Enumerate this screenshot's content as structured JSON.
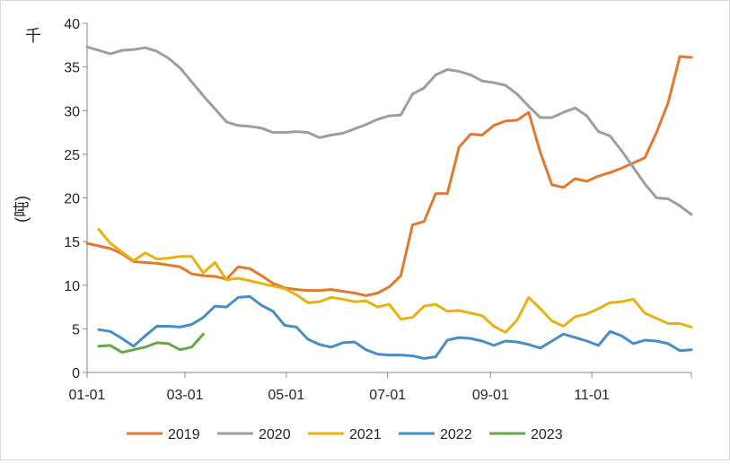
{
  "chart_data": {
    "type": "line",
    "title": "",
    "xlabel": "",
    "unit_label": "千",
    "ylabel": "(吨)",
    "xlim": [
      "01-01",
      "12-31"
    ],
    "ylim": [
      0,
      40
    ],
    "y_ticks": [
      0,
      5,
      10,
      15,
      20,
      25,
      30,
      35,
      40
    ],
    "x_ticks": [
      "01-01",
      "03-01",
      "05-01",
      "07-01",
      "09-01",
      "11-01"
    ],
    "grid": false,
    "legend_position": "bottom",
    "colors": {
      "2019": "#e07a30",
      "2020": "#9e9e9e",
      "2021": "#e6b214",
      "2022": "#4a8cc4",
      "2023": "#66a845"
    },
    "series": [
      {
        "name": "2019",
        "color": "#e07a30",
        "points": [
          [
            "01-01",
            14.8
          ],
          [
            "01-15",
            14.2
          ],
          [
            "01-22",
            13.6
          ],
          [
            "01-29",
            12.7
          ],
          [
            "02-05",
            12.6
          ],
          [
            "02-12",
            12.5
          ],
          [
            "02-19",
            12.3
          ],
          [
            "02-26",
            12.1
          ],
          [
            "03-05",
            11.3
          ],
          [
            "03-12",
            11.1
          ],
          [
            "03-19",
            11.0
          ],
          [
            "03-26",
            10.7
          ],
          [
            "04-02",
            12.1
          ],
          [
            "04-09",
            11.9
          ],
          [
            "04-16",
            11.1
          ],
          [
            "04-23",
            10.2
          ],
          [
            "04-30",
            9.7
          ],
          [
            "05-07",
            9.5
          ],
          [
            "05-14",
            9.4
          ],
          [
            "05-21",
            9.4
          ],
          [
            "05-28",
            9.5
          ],
          [
            "06-04",
            9.3
          ],
          [
            "06-11",
            9.1
          ],
          [
            "06-18",
            8.8
          ],
          [
            "06-25",
            9.1
          ],
          [
            "07-02",
            9.8
          ],
          [
            "07-09",
            11.1
          ],
          [
            "07-16",
            16.9
          ],
          [
            "07-23",
            17.3
          ],
          [
            "07-30",
            20.5
          ],
          [
            "08-06",
            20.5
          ],
          [
            "08-13",
            25.8
          ],
          [
            "08-20",
            27.3
          ],
          [
            "08-27",
            27.2
          ],
          [
            "09-03",
            28.3
          ],
          [
            "09-10",
            28.8
          ],
          [
            "09-17",
            28.9
          ],
          [
            "09-24",
            29.8
          ],
          [
            "10-01",
            25.2
          ],
          [
            "10-08",
            21.5
          ],
          [
            "10-15",
            21.2
          ],
          [
            "10-22",
            22.2
          ],
          [
            "10-29",
            21.9
          ],
          [
            "11-05",
            22.5
          ],
          [
            "11-12",
            22.9
          ],
          [
            "11-19",
            23.4
          ],
          [
            "11-26",
            24.0
          ],
          [
            "12-03",
            24.6
          ],
          [
            "12-10",
            27.5
          ],
          [
            "12-17",
            30.9
          ],
          [
            "12-24",
            36.2
          ],
          [
            "12-31",
            36.1
          ]
        ]
      },
      {
        "name": "2020",
        "color": "#9e9e9e",
        "points": [
          [
            "01-01",
            37.3
          ],
          [
            "01-08",
            36.9
          ],
          [
            "01-15",
            36.5
          ],
          [
            "01-22",
            36.9
          ],
          [
            "01-29",
            37.0
          ],
          [
            "02-05",
            37.2
          ],
          [
            "02-12",
            36.8
          ],
          [
            "02-19",
            36.0
          ],
          [
            "02-26",
            34.9
          ],
          [
            "03-05",
            33.3
          ],
          [
            "03-12",
            31.7
          ],
          [
            "03-19",
            30.2
          ],
          [
            "03-26",
            28.7
          ],
          [
            "04-02",
            28.3
          ],
          [
            "04-09",
            28.2
          ],
          [
            "04-16",
            28.0
          ],
          [
            "04-23",
            27.5
          ],
          [
            "04-30",
            27.5
          ],
          [
            "05-07",
            27.6
          ],
          [
            "05-14",
            27.5
          ],
          [
            "05-21",
            26.9
          ],
          [
            "05-28",
            27.2
          ],
          [
            "06-04",
            27.4
          ],
          [
            "06-11",
            27.9
          ],
          [
            "06-18",
            28.4
          ],
          [
            "06-25",
            29.0
          ],
          [
            "07-02",
            29.4
          ],
          [
            "07-09",
            29.5
          ],
          [
            "07-16",
            31.9
          ],
          [
            "07-23",
            32.6
          ],
          [
            "07-30",
            34.1
          ],
          [
            "08-06",
            34.7
          ],
          [
            "08-13",
            34.5
          ],
          [
            "08-20",
            34.1
          ],
          [
            "08-27",
            33.4
          ],
          [
            "09-03",
            33.2
          ],
          [
            "09-10",
            32.9
          ],
          [
            "09-17",
            31.9
          ],
          [
            "09-24",
            30.5
          ],
          [
            "10-01",
            29.2
          ],
          [
            "10-08",
            29.2
          ],
          [
            "10-15",
            29.8
          ],
          [
            "10-22",
            30.3
          ],
          [
            "10-29",
            29.4
          ],
          [
            "11-05",
            27.6
          ],
          [
            "11-12",
            27.1
          ],
          [
            "11-19",
            25.4
          ],
          [
            "11-26",
            23.5
          ],
          [
            "12-03",
            21.6
          ],
          [
            "12-10",
            20.0
          ],
          [
            "12-17",
            19.9
          ],
          [
            "12-24",
            19.1
          ],
          [
            "12-31",
            18.1
          ]
        ]
      },
      {
        "name": "2021",
        "color": "#e6b214",
        "points": [
          [
            "01-08",
            16.4
          ],
          [
            "01-15",
            14.8
          ],
          [
            "01-22",
            13.8
          ],
          [
            "01-29",
            12.8
          ],
          [
            "02-05",
            13.7
          ],
          [
            "02-12",
            13.0
          ],
          [
            "02-19",
            13.1
          ],
          [
            "02-26",
            13.3
          ],
          [
            "03-05",
            13.3
          ],
          [
            "03-12",
            11.4
          ],
          [
            "03-19",
            12.6
          ],
          [
            "03-26",
            10.6
          ],
          [
            "04-02",
            10.8
          ],
          [
            "04-09",
            10.5
          ],
          [
            "04-16",
            10.2
          ],
          [
            "04-23",
            9.9
          ],
          [
            "04-30",
            9.6
          ],
          [
            "05-07",
            8.9
          ],
          [
            "05-14",
            8.0
          ],
          [
            "05-21",
            8.1
          ],
          [
            "05-28",
            8.6
          ],
          [
            "06-04",
            8.4
          ],
          [
            "06-11",
            8.1
          ],
          [
            "06-18",
            8.2
          ],
          [
            "06-25",
            7.5
          ],
          [
            "07-02",
            7.8
          ],
          [
            "07-09",
            6.1
          ],
          [
            "07-16",
            6.3
          ],
          [
            "07-23",
            7.6
          ],
          [
            "07-30",
            7.8
          ],
          [
            "08-06",
            7.0
          ],
          [
            "08-13",
            7.1
          ],
          [
            "08-20",
            6.8
          ],
          [
            "08-27",
            6.5
          ],
          [
            "09-03",
            5.3
          ],
          [
            "09-10",
            4.6
          ],
          [
            "09-17",
            6.0
          ],
          [
            "09-24",
            8.6
          ],
          [
            "10-01",
            7.3
          ],
          [
            "10-08",
            5.9
          ],
          [
            "10-15",
            5.3
          ],
          [
            "10-22",
            6.4
          ],
          [
            "10-29",
            6.7
          ],
          [
            "11-05",
            7.3
          ],
          [
            "11-12",
            8.0
          ],
          [
            "11-19",
            8.1
          ],
          [
            "11-26",
            8.4
          ],
          [
            "12-03",
            6.8
          ],
          [
            "12-10",
            6.2
          ],
          [
            "12-17",
            5.6
          ],
          [
            "12-24",
            5.6
          ],
          [
            "12-31",
            5.2
          ]
        ]
      },
      {
        "name": "2022",
        "color": "#4a8cc4",
        "points": [
          [
            "01-08",
            4.9
          ],
          [
            "01-15",
            4.7
          ],
          [
            "01-22",
            3.9
          ],
          [
            "01-29",
            3.0
          ],
          [
            "02-05",
            4.2
          ],
          [
            "02-12",
            5.3
          ],
          [
            "02-19",
            5.3
          ],
          [
            "02-26",
            5.2
          ],
          [
            "03-05",
            5.5
          ],
          [
            "03-12",
            6.3
          ],
          [
            "03-19",
            7.6
          ],
          [
            "03-26",
            7.5
          ],
          [
            "04-02",
            8.6
          ],
          [
            "04-09",
            8.7
          ],
          [
            "04-16",
            7.7
          ],
          [
            "04-23",
            7.0
          ],
          [
            "04-30",
            5.4
          ],
          [
            "05-07",
            5.2
          ],
          [
            "05-14",
            3.8
          ],
          [
            "05-21",
            3.2
          ],
          [
            "05-28",
            2.9
          ],
          [
            "06-04",
            3.4
          ],
          [
            "06-11",
            3.5
          ],
          [
            "06-18",
            2.6
          ],
          [
            "06-25",
            2.1
          ],
          [
            "07-02",
            2.0
          ],
          [
            "07-09",
            2.0
          ],
          [
            "07-16",
            1.9
          ],
          [
            "07-23",
            1.6
          ],
          [
            "07-30",
            1.8
          ],
          [
            "08-06",
            3.7
          ],
          [
            "08-13",
            4.0
          ],
          [
            "08-20",
            3.9
          ],
          [
            "08-27",
            3.6
          ],
          [
            "09-03",
            3.1
          ],
          [
            "09-10",
            3.6
          ],
          [
            "09-17",
            3.5
          ],
          [
            "09-24",
            3.2
          ],
          [
            "10-01",
            2.8
          ],
          [
            "10-08",
            3.6
          ],
          [
            "10-15",
            4.4
          ],
          [
            "10-22",
            4.0
          ],
          [
            "10-29",
            3.6
          ],
          [
            "11-05",
            3.1
          ],
          [
            "11-12",
            4.7
          ],
          [
            "11-19",
            4.2
          ],
          [
            "11-26",
            3.3
          ],
          [
            "12-03",
            3.7
          ],
          [
            "12-10",
            3.6
          ],
          [
            "12-17",
            3.3
          ],
          [
            "12-24",
            2.5
          ],
          [
            "12-31",
            2.6
          ]
        ]
      },
      {
        "name": "2023",
        "color": "#66a845",
        "points": [
          [
            "01-08",
            3.0
          ],
          [
            "01-15",
            3.1
          ],
          [
            "01-22",
            2.3
          ],
          [
            "01-29",
            2.6
          ],
          [
            "02-05",
            2.9
          ],
          [
            "02-12",
            3.4
          ],
          [
            "02-19",
            3.3
          ],
          [
            "02-26",
            2.6
          ],
          [
            "03-05",
            2.9
          ],
          [
            "03-12",
            4.4
          ]
        ]
      }
    ]
  }
}
